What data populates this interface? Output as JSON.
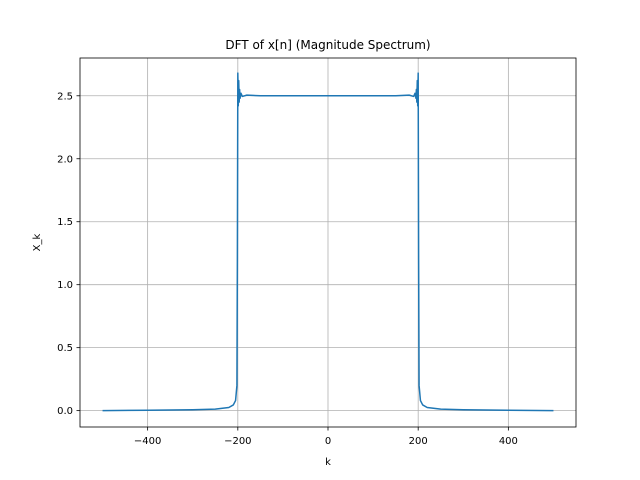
{
  "chart_data": {
    "type": "line",
    "title": "DFT of x[n] (Magnitude Spectrum)",
    "xlabel": "k",
    "ylabel": "X_k",
    "xlim": [
      -550,
      550
    ],
    "ylim": [
      -0.13,
      2.8
    ],
    "xticks": [
      -400,
      -200,
      0,
      200,
      400
    ],
    "xtick_labels": [
      "−400",
      "−200",
      "0",
      "200",
      "400"
    ],
    "yticks": [
      0.0,
      0.5,
      1.0,
      1.5,
      2.0,
      2.5
    ],
    "ytick_labels": [
      "0.0",
      "0.5",
      "1.0",
      "1.5",
      "2.0",
      "2.5"
    ],
    "grid": true,
    "series": [
      {
        "color": "#1f77b4",
        "x": [
          -500,
          -400,
          -300,
          -250,
          -220,
          -210,
          -205,
          -202,
          -201,
          -200,
          -199,
          -198,
          -197,
          -196,
          -195,
          -193,
          -190,
          -180,
          -150,
          -100,
          -50,
          0,
          50,
          100,
          150,
          180,
          190,
          193,
          195,
          196,
          197,
          198,
          199,
          200,
          201,
          202,
          205,
          210,
          220,
          250,
          300,
          400,
          500
        ],
        "y": [
          0.0,
          0.003,
          0.007,
          0.012,
          0.025,
          0.045,
          0.08,
          0.2,
          1.2,
          2.68,
          2.42,
          2.62,
          2.45,
          2.55,
          2.48,
          2.52,
          2.495,
          2.505,
          2.5,
          2.5,
          2.5,
          2.5,
          2.5,
          2.5,
          2.5,
          2.505,
          2.495,
          2.52,
          2.48,
          2.55,
          2.45,
          2.62,
          2.42,
          2.68,
          1.2,
          0.2,
          0.08,
          0.045,
          0.025,
          0.012,
          0.007,
          0.003,
          0.0
        ]
      }
    ]
  }
}
